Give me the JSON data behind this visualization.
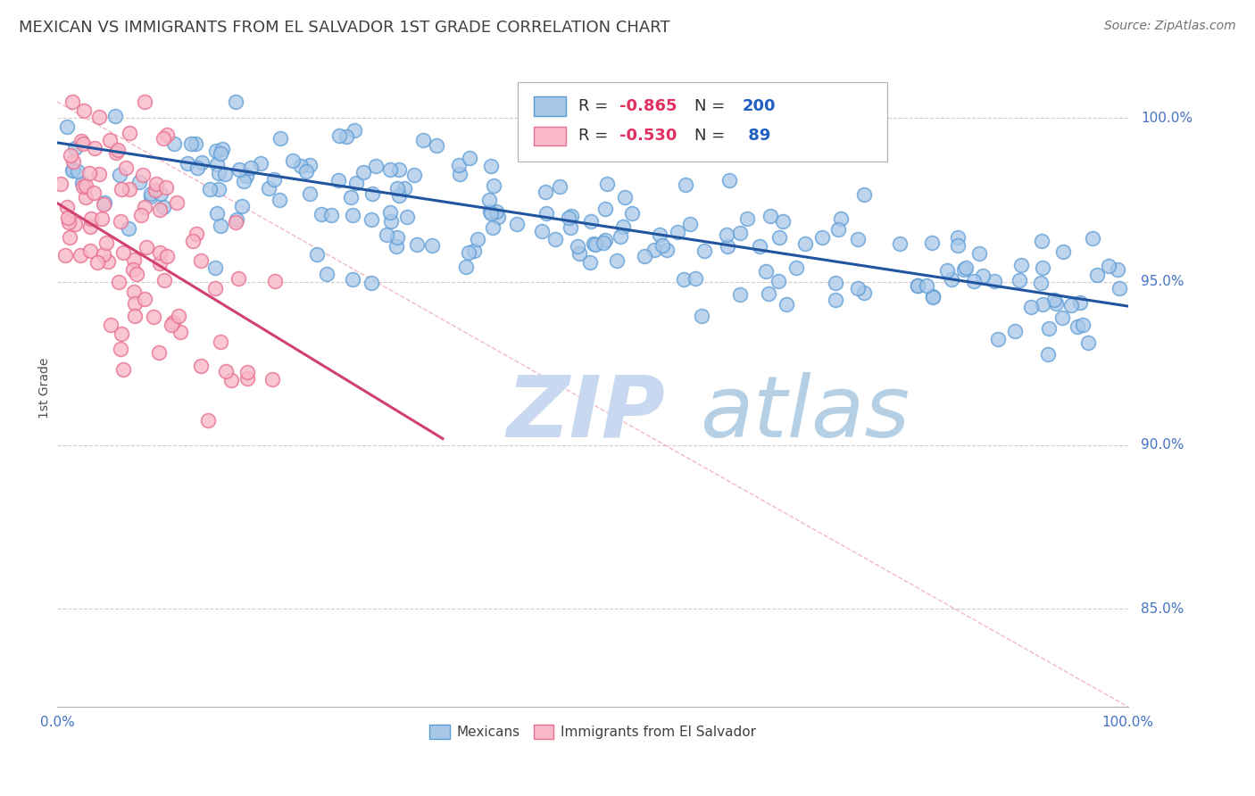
{
  "title": "MEXICAN VS IMMIGRANTS FROM EL SALVADOR 1ST GRADE CORRELATION CHART",
  "source": "Source: ZipAtlas.com",
  "ylabel": "1st Grade",
  "yticks": [
    0.85,
    0.9,
    0.95,
    1.0
  ],
  "ytick_labels": [
    "85.0%",
    "90.0%",
    "95.0%",
    "100.0%"
  ],
  "xlim": [
    0.0,
    1.0
  ],
  "ylim": [
    0.82,
    1.015
  ],
  "blue_color": "#a8c8e8",
  "blue_edge_color": "#5b9bd5",
  "blue_line_color": "#2255a0",
  "pink_color": "#f8b8c8",
  "pink_edge_color": "#e87090",
  "pink_line_color": "#d04070",
  "diag_color": "#f0b0c0",
  "r_blue": -0.865,
  "n_blue": 200,
  "r_pink": -0.53,
  "n_pink": 89,
  "blue_intercept": 0.9925,
  "blue_slope": -0.05,
  "pink_intercept": 0.974,
  "pink_slope": -0.2,
  "background_color": "#ffffff",
  "grid_color": "#c8c8c8",
  "axis_color": "#4472c4",
  "title_color": "#404040",
  "source_color": "#707070",
  "watermark_zip_color": "#c8d8f0",
  "watermark_atlas_color": "#a8c8e0",
  "legend_r_color": "#e03060",
  "legend_n_color": "#2060c0"
}
